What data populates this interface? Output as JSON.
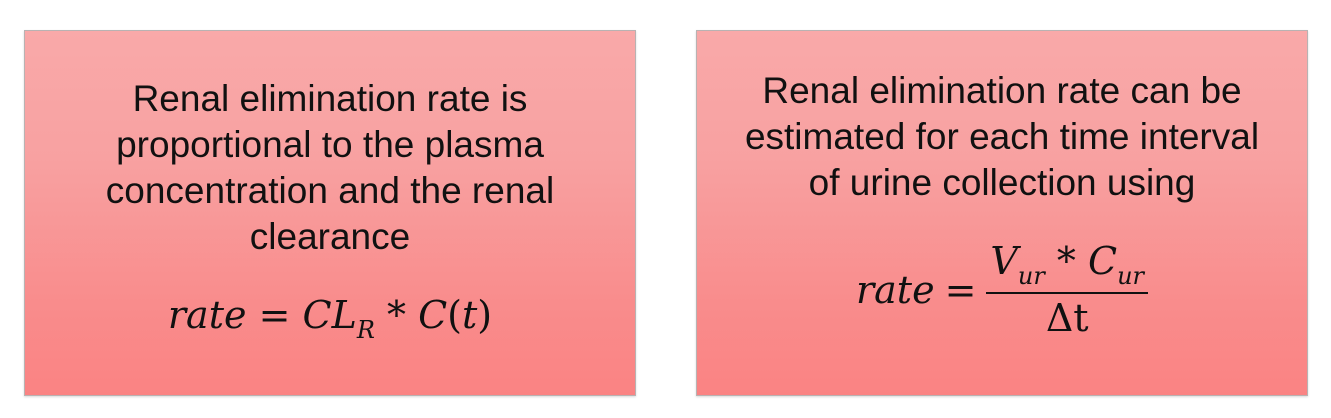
{
  "cards": [
    {
      "statement_lines": [
        "Renal elimination rate is",
        "proportional to the plasma",
        "concentration and the renal",
        "clearance"
      ],
      "formula": {
        "lhs": "rate",
        "eq": "=",
        "cl": "CL",
        "cl_sub": "R",
        "op": "*",
        "c": "C",
        "open": "(",
        "t": "t",
        "close": ")"
      }
    },
    {
      "statement_lines": [
        "Renal elimination rate can be",
        "estimated for each time interval",
        "of urine collection using"
      ],
      "formula": {
        "lhs": "rate",
        "eq": "=",
        "v": "V",
        "v_sub": "ur",
        "op": "*",
        "c": "C",
        "c_sub": "ur",
        "denominator": "Δt"
      }
    }
  ]
}
